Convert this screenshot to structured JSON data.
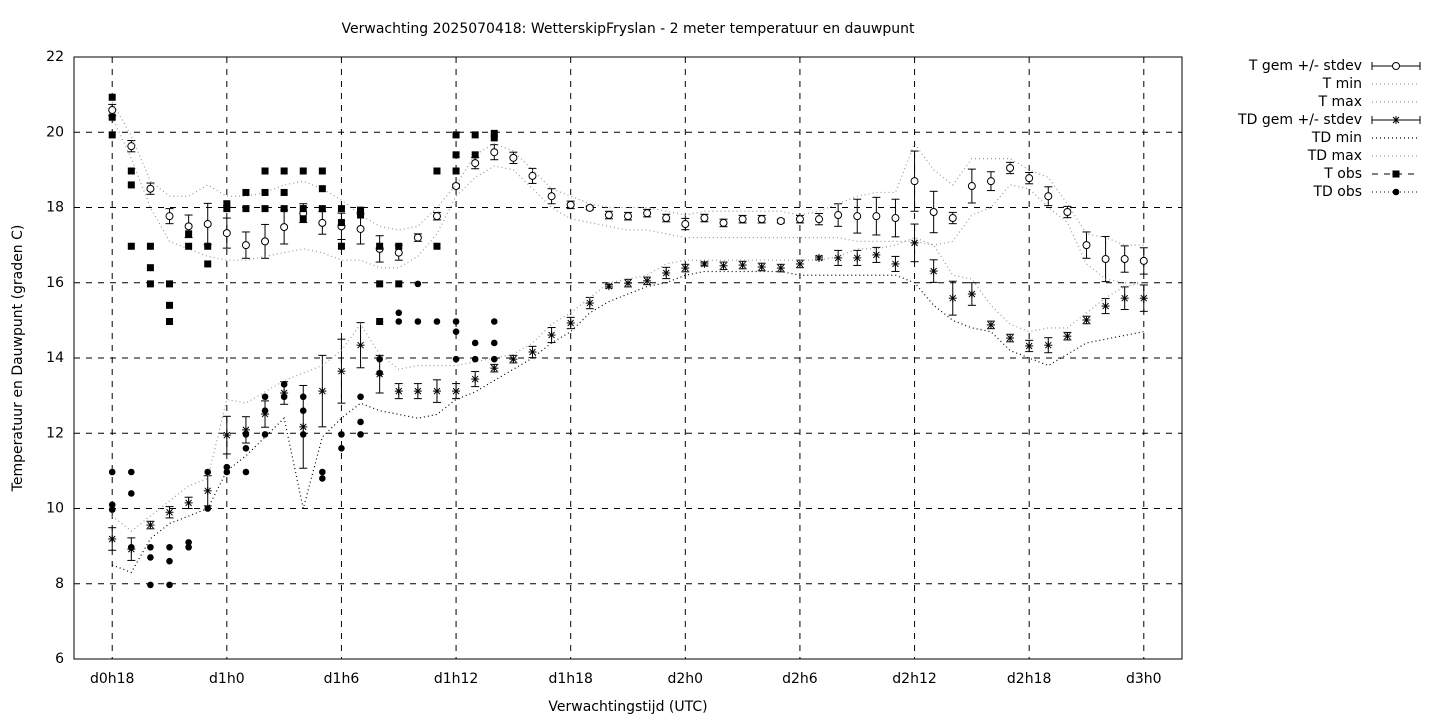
{
  "chart_data": {
    "type": "errorbar",
    "title": "Verwachting 2025070418: WetterskipFryslan - 2 meter temperatuur en dauwpunt",
    "x_label": "Verwachtingstijd (UTC)",
    "y_label": "Temperatuur en Dauwpunt (graden C)",
    "xlim": [
      16,
      74
    ],
    "ylim": [
      6,
      22
    ],
    "grid": true,
    "xticks": [
      {
        "value": 18,
        "label": "d0h18"
      },
      {
        "value": 24,
        "label": "d1h0"
      },
      {
        "value": 30,
        "label": "d1h6"
      },
      {
        "value": 36,
        "label": "d1h12"
      },
      {
        "value": 42,
        "label": "d1h18"
      },
      {
        "value": 48,
        "label": "d2h0"
      },
      {
        "value": 54,
        "label": "d2h6"
      },
      {
        "value": 60,
        "label": "d2h12"
      },
      {
        "value": 66,
        "label": "d2h18"
      },
      {
        "value": 72,
        "label": "d3h0"
      }
    ],
    "yticks": [
      6,
      8,
      10,
      12,
      14,
      16,
      18,
      20,
      22
    ],
    "x": [
      18,
      19,
      20,
      21,
      22,
      23,
      24,
      25,
      26,
      27,
      28,
      29,
      30,
      31,
      32,
      33,
      34,
      35,
      36,
      37,
      38,
      39,
      40,
      41,
      42,
      43,
      44,
      45,
      46,
      47,
      48,
      49,
      50,
      51,
      52,
      53,
      54,
      55,
      56,
      57,
      58,
      59,
      60,
      61,
      62,
      63,
      64,
      65,
      66,
      67,
      68,
      69,
      70,
      71,
      72
    ],
    "series": [
      {
        "name": "T gem +/- stdev",
        "style": "errorbars",
        "marker": "circle-open",
        "color": "#000000",
        "values": [
          20.59,
          19.63,
          18.5,
          17.77,
          17.5,
          17.56,
          17.32,
          17.0,
          17.1,
          17.48,
          17.85,
          17.59,
          17.5,
          17.43,
          16.9,
          16.8,
          17.2,
          17.77,
          18.57,
          19.18,
          19.47,
          19.32,
          18.84,
          18.3,
          18.07,
          17.99,
          17.8,
          17.77,
          17.85,
          17.72,
          17.56,
          17.72,
          17.59,
          17.69,
          17.69,
          17.64,
          17.69,
          17.69,
          17.8,
          17.77,
          17.77,
          17.72,
          18.7,
          17.88,
          17.72,
          18.57,
          18.7,
          19.05,
          18.78,
          18.3,
          17.88,
          17.0,
          16.63,
          16.63,
          16.58
        ],
        "errors": [
          0.15,
          0.15,
          0.15,
          0.2,
          0.3,
          0.55,
          0.4,
          0.35,
          0.45,
          0.45,
          0.25,
          0.3,
          0.35,
          0.4,
          0.35,
          0.2,
          0.1,
          0.1,
          0.05,
          0.15,
          0.2,
          0.15,
          0.2,
          0.2,
          0.1,
          0.05,
          0.1,
          0.1,
          0.1,
          0.1,
          0.15,
          0.1,
          0.1,
          0.1,
          0.1,
          0.05,
          0.1,
          0.15,
          0.3,
          0.45,
          0.5,
          0.5,
          0.8,
          0.55,
          0.15,
          0.45,
          0.25,
          0.15,
          0.15,
          0.25,
          0.15,
          0.35,
          0.6,
          0.35,
          0.35
        ]
      },
      {
        "name": "T min",
        "style": "dotted",
        "color": "#999999",
        "values": [
          20.4,
          19.3,
          18.0,
          17.1,
          16.9,
          16.7,
          16.6,
          16.6,
          16.7,
          16.8,
          16.9,
          16.8,
          16.6,
          16.6,
          16.4,
          16.4,
          16.7,
          17.3,
          18.3,
          18.8,
          19.1,
          19.0,
          18.5,
          18.0,
          17.7,
          17.6,
          17.5,
          17.4,
          17.4,
          17.3,
          17.2,
          17.2,
          17.2,
          17.2,
          17.2,
          17.2,
          17.2,
          17.2,
          17.2,
          17.1,
          17.1,
          17.1,
          17.1,
          17.0,
          17.1,
          17.8,
          18.0,
          18.6,
          18.5,
          18.0,
          17.6,
          16.5,
          16.1,
          16.0,
          16.0
        ]
      },
      {
        "name": "T max",
        "style": "dotted",
        "color": "#999999",
        "values": [
          20.8,
          19.9,
          18.7,
          18.3,
          18.3,
          18.6,
          18.3,
          18.3,
          18.4,
          18.6,
          18.7,
          18.5,
          18.2,
          17.8,
          17.5,
          17.4,
          17.5,
          18.0,
          18.6,
          19.4,
          19.7,
          19.5,
          19.0,
          18.5,
          18.3,
          18.1,
          18.0,
          18.0,
          18.0,
          17.9,
          17.8,
          17.9,
          17.9,
          17.9,
          17.9,
          17.9,
          17.8,
          17.9,
          18.1,
          18.3,
          18.4,
          18.4,
          19.7,
          19.0,
          18.6,
          19.3,
          19.3,
          19.3,
          19.0,
          18.8,
          18.1,
          17.3,
          17.2,
          17.0,
          17.0
        ]
      },
      {
        "name": "TD gem +/- stdev",
        "style": "errorbars",
        "marker": "asterisk",
        "color": "#000000",
        "values": [
          9.19,
          8.92,
          9.56,
          9.9,
          10.15,
          10.47,
          11.95,
          12.09,
          12.51,
          13.07,
          12.17,
          13.12,
          13.65,
          14.34,
          13.57,
          13.12,
          13.12,
          13.12,
          13.12,
          13.44,
          13.73,
          13.97,
          14.16,
          14.61,
          14.93,
          15.46,
          15.91,
          15.99,
          16.05,
          16.26,
          16.39,
          16.5,
          16.45,
          16.47,
          16.42,
          16.39,
          16.5,
          16.66,
          16.66,
          16.66,
          16.74,
          16.5,
          17.06,
          16.31,
          15.59,
          15.7,
          14.88,
          14.53,
          14.32,
          14.34,
          14.58,
          15.01,
          15.38,
          15.59,
          15.59
        ],
        "errors": [
          0.3,
          0.3,
          0.1,
          0.15,
          0.15,
          0.4,
          0.5,
          0.35,
          0.35,
          0.3,
          1.1,
          0.95,
          0.85,
          0.6,
          0.5,
          0.2,
          0.2,
          0.3,
          0.2,
          0.2,
          0.1,
          0.1,
          0.15,
          0.2,
          0.15,
          0.15,
          0.05,
          0.1,
          0.1,
          0.15,
          0.1,
          0.05,
          0.1,
          0.1,
          0.1,
          0.1,
          0.1,
          0.05,
          0.2,
          0.2,
          0.2,
          0.2,
          0.5,
          0.3,
          0.45,
          0.3,
          0.1,
          0.1,
          0.15,
          0.2,
          0.1,
          0.1,
          0.2,
          0.3,
          0.35
        ]
      },
      {
        "name": "TD min",
        "style": "dotted",
        "color": "#000000",
        "values": [
          8.5,
          8.3,
          9.2,
          9.6,
          9.8,
          10.0,
          11.0,
          11.4,
          11.9,
          12.4,
          10.0,
          11.9,
          12.4,
          12.8,
          12.6,
          12.5,
          12.4,
          12.5,
          12.9,
          13.1,
          13.4,
          13.7,
          14.0,
          14.4,
          14.7,
          15.2,
          15.5,
          15.7,
          15.9,
          16.0,
          16.2,
          16.3,
          16.3,
          16.3,
          16.3,
          16.3,
          16.2,
          16.2,
          16.2,
          16.2,
          16.2,
          16.2,
          16.0,
          15.4,
          15.0,
          14.8,
          14.7,
          14.2,
          14.0,
          13.8,
          14.1,
          14.4,
          14.5,
          14.6,
          14.7
        ]
      },
      {
        "name": "TD max",
        "style": "dotted",
        "color": "#999999",
        "values": [
          9.8,
          9.4,
          9.8,
          10.2,
          10.6,
          10.8,
          12.9,
          12.8,
          13.1,
          13.4,
          13.6,
          13.8,
          14.2,
          14.9,
          14.1,
          13.7,
          13.8,
          13.8,
          13.8,
          13.9,
          14.0,
          14.1,
          14.4,
          14.9,
          15.2,
          15.6,
          16.0,
          16.1,
          16.2,
          16.5,
          16.6,
          16.6,
          16.6,
          16.6,
          16.6,
          16.6,
          16.6,
          16.6,
          16.7,
          16.9,
          16.9,
          17.0,
          17.2,
          17.0,
          16.2,
          16.1,
          15.4,
          14.9,
          14.7,
          14.8,
          14.8,
          15.2,
          15.6,
          15.9,
          16.0
        ]
      },
      {
        "name": "T obs",
        "style": "points",
        "marker": "square",
        "color": "#000000",
        "x": [
          18,
          18,
          18,
          19,
          19,
          19,
          20,
          20,
          20,
          21,
          21,
          21,
          22,
          22,
          23,
          23,
          24,
          24,
          25,
          25,
          26,
          26,
          26,
          27,
          27,
          27,
          28,
          28,
          28,
          29,
          29,
          29,
          30,
          30,
          30,
          31,
          31,
          32,
          32,
          32,
          33,
          33,
          35,
          35,
          36,
          36,
          36,
          37,
          37,
          38,
          38
        ],
        "values": [
          20.93,
          20.4,
          19.93,
          18.97,
          18.6,
          16.97,
          16.97,
          16.4,
          15.97,
          15.97,
          15.4,
          14.97,
          17.3,
          16.97,
          16.97,
          16.5,
          18.1,
          17.97,
          18.4,
          17.97,
          18.97,
          18.4,
          17.97,
          18.97,
          18.4,
          17.97,
          18.97,
          17.97,
          17.7,
          18.97,
          18.5,
          17.97,
          17.97,
          17.6,
          16.97,
          17.93,
          17.8,
          16.97,
          15.97,
          14.97,
          16.97,
          15.97,
          18.97,
          16.97,
          19.93,
          19.4,
          18.97,
          19.93,
          19.4,
          19.97,
          19.85
        ]
      },
      {
        "name": "TD obs",
        "style": "points",
        "marker": "circle-filled",
        "color": "#000000",
        "x": [
          18,
          18,
          18,
          19,
          19,
          19,
          20,
          20,
          20,
          21,
          21,
          21,
          22,
          22,
          23,
          23,
          24,
          24,
          25,
          25,
          25,
          26,
          26,
          26,
          27,
          27,
          28,
          28,
          28,
          29,
          29,
          30,
          30,
          31,
          31,
          31,
          32,
          32,
          33,
          33,
          34,
          34,
          35,
          36,
          36,
          36,
          37,
          37,
          38,
          38,
          38
        ],
        "values": [
          10.97,
          10.1,
          9.97,
          10.97,
          10.4,
          8.97,
          8.97,
          8.7,
          7.97,
          8.97,
          8.6,
          7.97,
          9.1,
          8.97,
          10.97,
          10.0,
          11.1,
          10.97,
          11.97,
          11.6,
          10.97,
          12.97,
          12.6,
          11.97,
          13.3,
          12.97,
          12.97,
          12.6,
          11.97,
          10.97,
          10.8,
          11.97,
          11.6,
          12.97,
          12.3,
          11.97,
          13.97,
          13.6,
          15.2,
          14.97,
          15.97,
          14.97,
          14.97,
          14.97,
          14.7,
          13.97,
          14.4,
          13.97,
          14.97,
          14.4,
          13.97
        ]
      }
    ]
  }
}
